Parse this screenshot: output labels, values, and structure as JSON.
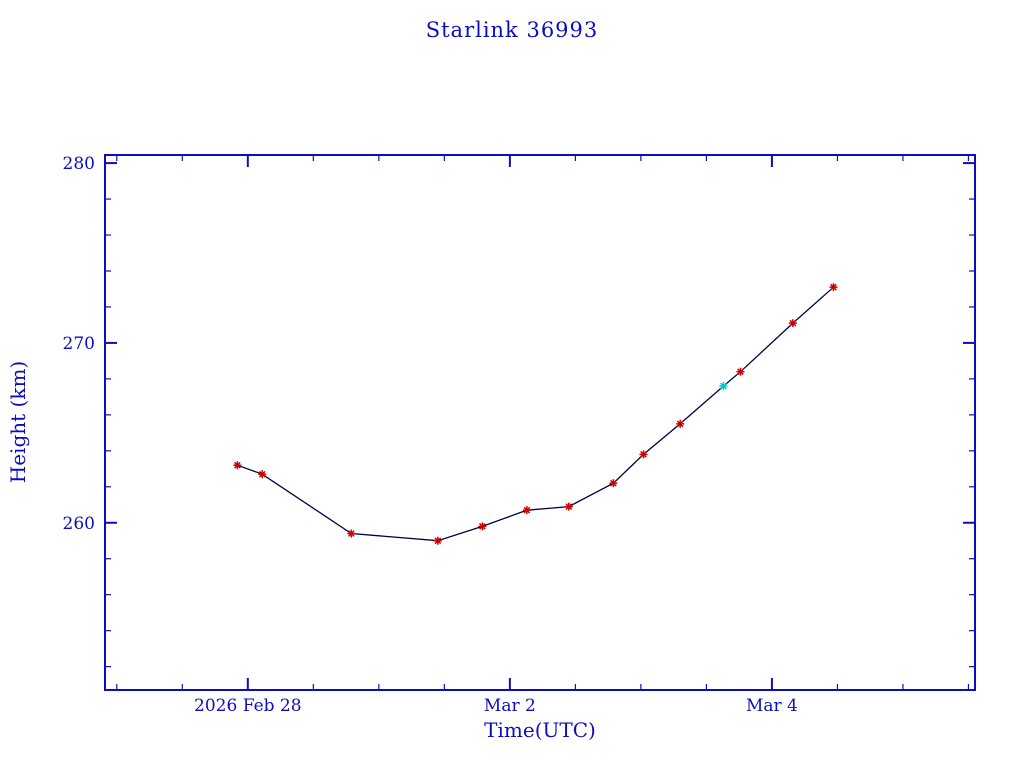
{
  "chart_data": {
    "type": "line",
    "title": "Starlink 36993",
    "xlabel": "Time(UTC)",
    "ylabel": "Height (km)",
    "xlim": [
      -1.09,
      5.55
    ],
    "ylim": [
      250.7,
      280.45
    ],
    "x_ticks": [
      {
        "day": 0,
        "label": "2026 Feb 28"
      },
      {
        "day": 2,
        "label": "Mar 2"
      },
      {
        "day": 4,
        "label": "Mar 4"
      }
    ],
    "x_minor_step_days": 0.5,
    "y_ticks": [
      {
        "value": 260,
        "label": "260"
      },
      {
        "value": 270,
        "label": "270"
      },
      {
        "value": 280,
        "label": "280"
      }
    ],
    "y_minor_step_km": 2,
    "grid": false,
    "legend": "none",
    "axis_color": "#0d0dc0",
    "text_color": "#0d0dc0",
    "line_color": "#000044",
    "marker_color": "#cc0000",
    "highlight_color": "#00c8c8",
    "points": [
      {
        "day": -0.08,
        "height": 263.2
      },
      {
        "day": 0.11,
        "height": 262.7
      },
      {
        "day": 0.79,
        "height": 259.4
      },
      {
        "day": 1.45,
        "height": 259.0
      },
      {
        "day": 1.79,
        "height": 259.8
      },
      {
        "day": 2.13,
        "height": 260.7
      },
      {
        "day": 2.45,
        "height": 260.9
      },
      {
        "day": 2.79,
        "height": 262.2
      },
      {
        "day": 3.02,
        "height": 263.8
      },
      {
        "day": 3.3,
        "height": 265.5
      },
      {
        "day": 3.63,
        "height": 267.6,
        "highlight": true
      },
      {
        "day": 3.76,
        "height": 268.4
      },
      {
        "day": 4.16,
        "height": 271.1
      },
      {
        "day": 4.47,
        "height": 273.1
      }
    ]
  }
}
